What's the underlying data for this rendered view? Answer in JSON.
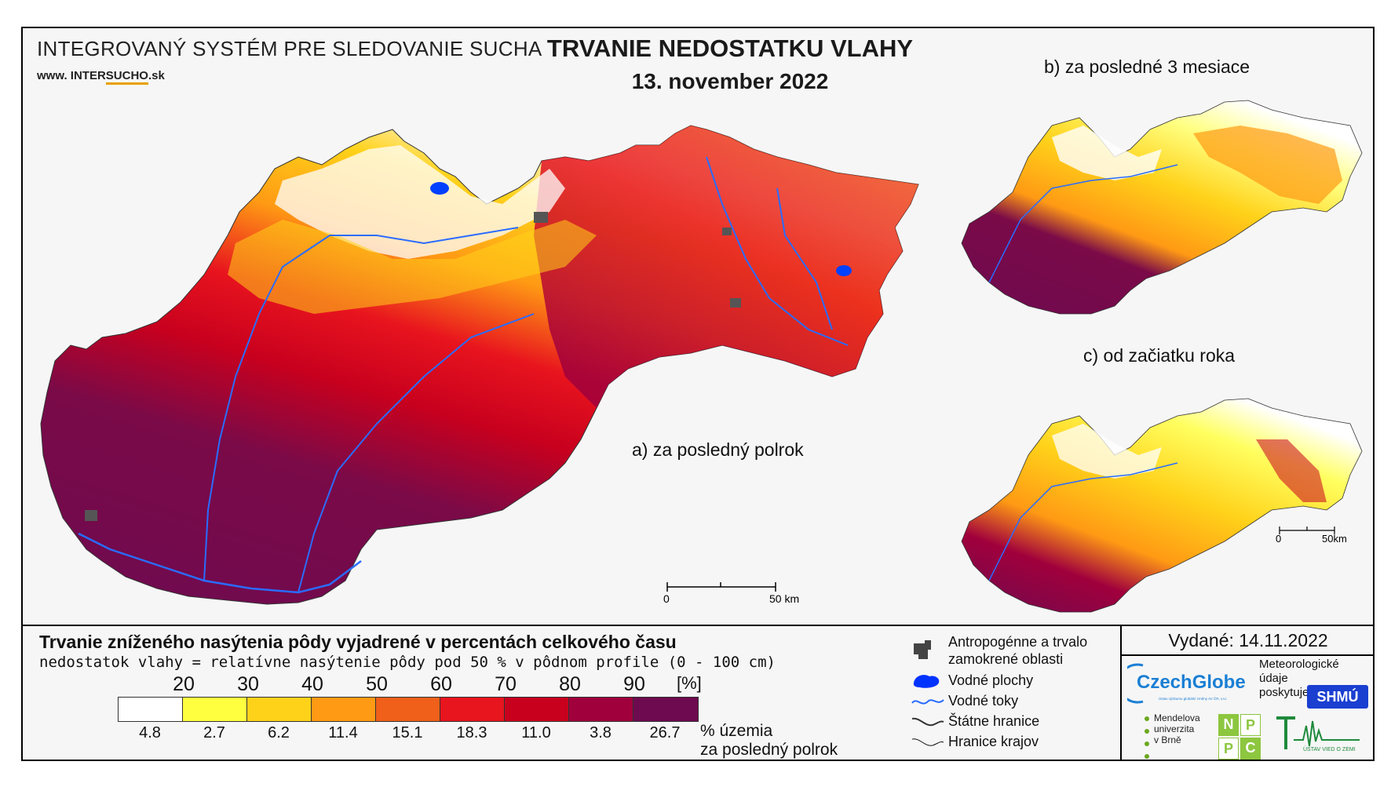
{
  "header": {
    "system_title": "INTEGROVANÝ SYSTÉM PRE SLEDOVANIE SUCHA",
    "www_prefix": "www.",
    "www_part1": "INTER",
    "www_part2": "SUCHO",
    "www_suffix": ".sk",
    "main_title": "TRVANIE NEDOSTATKU VLAHY",
    "date": "13. november 2022"
  },
  "maps": {
    "a_label": "a) za posledný polrok",
    "b_label": "b) za posledné 3 mesiace",
    "c_label": "c) od začiatku roka",
    "scale_main_start": "0",
    "scale_main_end": "50 km",
    "scale_small_start": "0",
    "scale_small_end": "50km"
  },
  "legend": {
    "title": "Trvanie zníženého nasýtenia pôdy vyjadrené v percentách celkového času",
    "subtitle": "nedostatok vlahy = relatívne nasýtenie pôdy pod 50 % v pôdnom profile (0 - 100 cm)",
    "unit": "[%]",
    "ticks": [
      "20",
      "30",
      "40",
      "50",
      "60",
      "70",
      "80",
      "90"
    ],
    "colors": [
      "#ffffff",
      "#ffff40",
      "#ffd21a",
      "#ff9a14",
      "#f0601a",
      "#e8141e",
      "#c8001e",
      "#a0003c",
      "#6e0a50"
    ],
    "percents": [
      "4.8",
      "2.7",
      "6.2",
      "11.4",
      "15.1",
      "18.3",
      "11.0",
      "3.8",
      "26.7"
    ],
    "percent_label_1": "% územia",
    "percent_label_2": "za posledný polrok"
  },
  "symbols": {
    "urban_1": "Antropogénne a trvalo",
    "urban_2": "zamokrené oblasti",
    "water_bodies": "Vodné plochy",
    "rivers": "Vodné toky",
    "state_border": "Štátne hranice",
    "region_border": "Hranice krajov"
  },
  "credits": {
    "issued": "Vydané: 14.11.2022",
    "czechglobe": "CzechGlobe",
    "czechglobe_sub": "Ústav výzkumu globální změny AV ČR, v.v.i.",
    "met_1": "Meteorologické",
    "met_2": "údaje",
    "met_3": "poskytuje:",
    "shmu": "SHMÚ",
    "mendel_1": "Mendelova",
    "mendel_2": "univerzita",
    "mendel_3": "v Brně",
    "npc": [
      "N",
      "P",
      "P",
      "C"
    ],
    "uvz": "ÚSTAV VIED O ZEMI"
  }
}
